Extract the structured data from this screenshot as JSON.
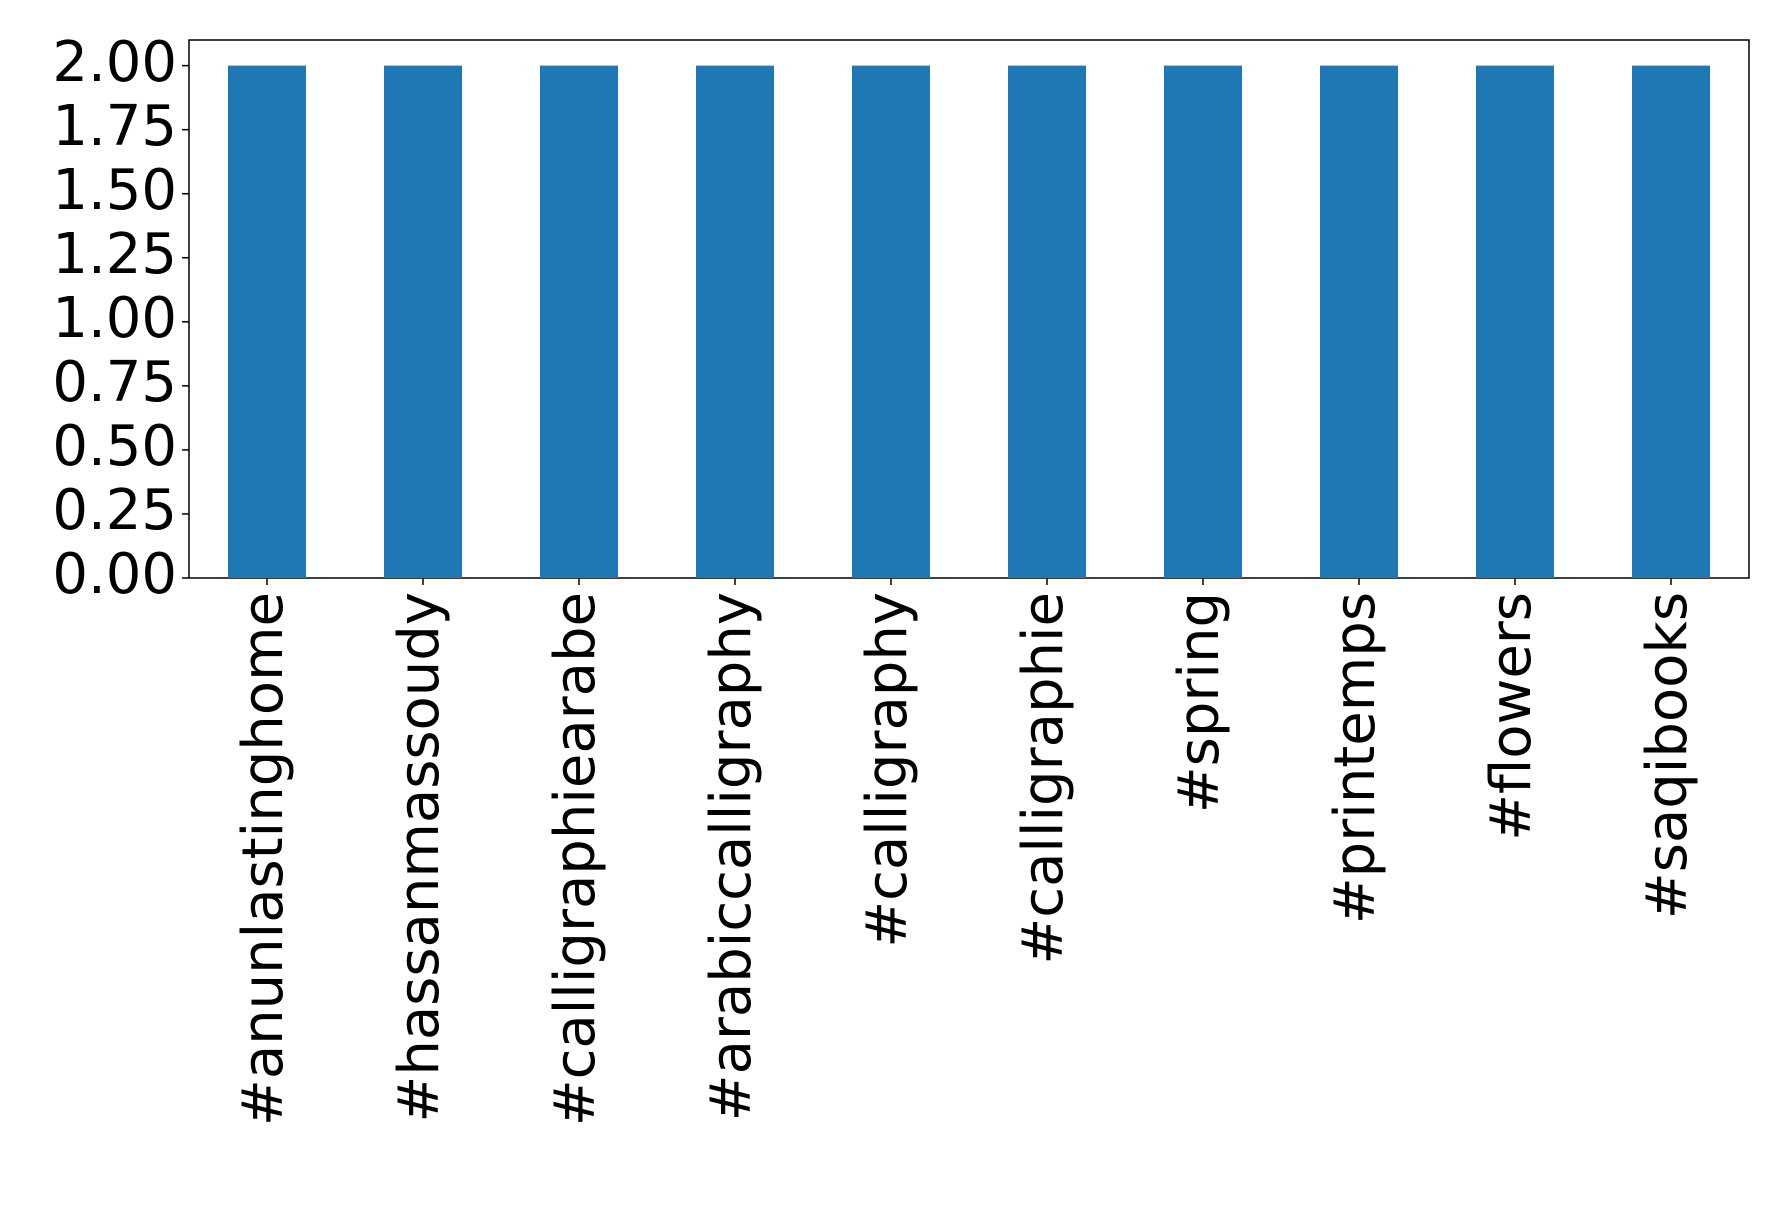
{
  "chart_data": {
    "type": "bar",
    "categories": [
      "#anunlastinghome",
      "#hassanmassoudy",
      "#calligraphiearabe",
      "#arabiccalligraphy",
      "#calligraphy",
      "#calligraphie",
      "#spring",
      "#printemps",
      "#flowers",
      "#saqibooks"
    ],
    "values": [
      2,
      2,
      2,
      2,
      2,
      2,
      2,
      2,
      2,
      2
    ],
    "color": "#1f77b4",
    "ylim": [
      0,
      2.1
    ],
    "yticks": [
      {
        "value": 0,
        "label": "0.00"
      },
      {
        "value": 0.25,
        "label": "0.25"
      },
      {
        "value": 0.5,
        "label": "0.50"
      },
      {
        "value": 0.75,
        "label": "0.75"
      },
      {
        "value": 1,
        "label": "1.00"
      },
      {
        "value": 1.25,
        "label": "1.25"
      },
      {
        "value": 1.5,
        "label": "1.50"
      },
      {
        "value": 1.75,
        "label": "1.75"
      },
      {
        "value": 2,
        "label": "2.00"
      }
    ],
    "grid": false
  }
}
